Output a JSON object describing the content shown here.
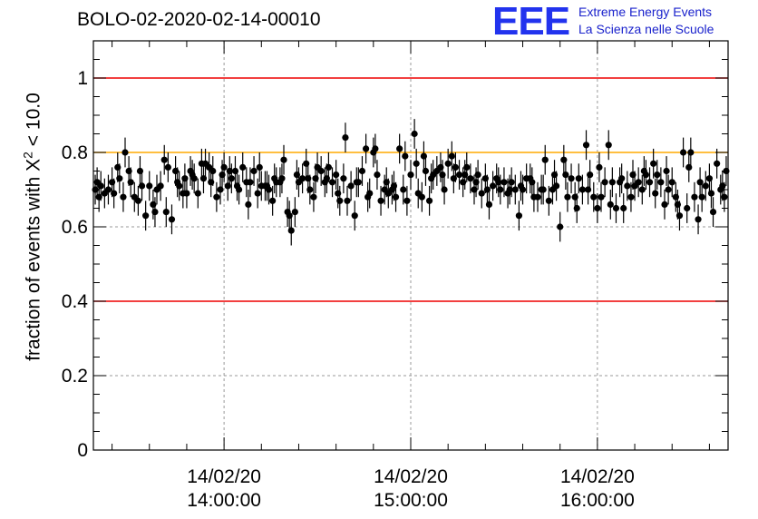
{
  "title": "BOLO-02-2020-02-14-00010",
  "logo": {
    "mark": "EEE",
    "line1": "Extreme Energy Events",
    "line2": "La Scienza nelle Scuole"
  },
  "colors": {
    "upper_lower_limit": "#ee0000",
    "reference_line": "#ffaa00",
    "points": "#000000",
    "grid": "#999999",
    "logo": "#2233ee"
  },
  "chart_data": {
    "type": "scatter",
    "title": "BOLO-02-2020-02-14-00010",
    "ylabel_prefix": "fraction of events with ",
    "ylabel_symbol": "X",
    "ylabel_sup": "2",
    "ylabel_suffix": " < 10.0",
    "ylim": [
      0,
      1.1
    ],
    "yticks": [
      0,
      0.2,
      0.4,
      0.6,
      0.8,
      1
    ],
    "ytick_labels": [
      "0",
      "0.2",
      "0.4",
      "0.6",
      "0.8",
      "1"
    ],
    "xlim_minutes": [
      -85,
      85
    ],
    "xticks": [
      {
        "minute": -50,
        "date": "14/02/20",
        "time": "14:00:00"
      },
      {
        "minute": 0,
        "date": "14/02/20",
        "time": "15:00:00"
      },
      {
        "minute": 50,
        "date": "14/02/20",
        "time": "16:00:00"
      }
    ],
    "grid": true,
    "hlines": [
      {
        "y": 1.0,
        "color": "#ee0000"
      },
      {
        "y": 0.8,
        "color": "#ffaa00"
      },
      {
        "y": 0.4,
        "color": "#ee0000"
      }
    ],
    "series": [
      {
        "error": 0.04,
        "points": [
          [
            -84.5,
            0.7
          ],
          [
            -84,
            0.72
          ],
          [
            -83.5,
            0.68
          ],
          [
            -83,
            0.71
          ],
          [
            -82,
            0.69
          ],
          [
            -81,
            0.7
          ],
          [
            -80,
            0.72
          ],
          [
            -79.5,
            0.69
          ],
          [
            -78.5,
            0.76
          ],
          [
            -78,
            0.73
          ],
          [
            -77,
            0.68
          ],
          [
            -76.5,
            0.8
          ],
          [
            -75.5,
            0.75
          ],
          [
            -75,
            0.72
          ],
          [
            -74,
            0.68
          ],
          [
            -73,
            0.67
          ],
          [
            -72.5,
            0.75
          ],
          [
            -72,
            0.71
          ],
          [
            -71,
            0.63
          ],
          [
            -70,
            0.71
          ],
          [
            -69,
            0.66
          ],
          [
            -68.5,
            0.64
          ],
          [
            -68,
            0.7
          ],
          [
            -67,
            0.71
          ],
          [
            -66,
            0.78
          ],
          [
            -65.5,
            0.64
          ],
          [
            -65,
            0.76
          ],
          [
            -64,
            0.62
          ],
          [
            -63,
            0.75
          ],
          [
            -62.5,
            0.72
          ],
          [
            -62,
            0.71
          ],
          [
            -61,
            0.69
          ],
          [
            -60.5,
            0.73
          ],
          [
            -60,
            0.69
          ],
          [
            -59,
            0.75
          ],
          [
            -58.5,
            0.74
          ],
          [
            -58,
            0.73
          ],
          [
            -57,
            0.69
          ],
          [
            -56,
            0.77
          ],
          [
            -55.5,
            0.73
          ],
          [
            -55,
            0.77
          ],
          [
            -54,
            0.76
          ],
          [
            -53.5,
            0.72
          ],
          [
            -53,
            0.75
          ],
          [
            -52,
            0.68
          ],
          [
            -51,
            0.7
          ],
          [
            -50.5,
            0.74
          ],
          [
            -50,
            0.76
          ],
          [
            -49,
            0.71
          ],
          [
            -48.5,
            0.75
          ],
          [
            -48,
            0.73
          ],
          [
            -47,
            0.75
          ],
          [
            -46.5,
            0.71
          ],
          [
            -46,
            0.7
          ],
          [
            -45,
            0.76
          ],
          [
            -44,
            0.72
          ],
          [
            -43.5,
            0.66
          ],
          [
            -43,
            0.72
          ],
          [
            -42,
            0.75
          ],
          [
            -41,
            0.69
          ],
          [
            -40.5,
            0.76
          ],
          [
            -40,
            0.71
          ],
          [
            -39,
            0.71
          ],
          [
            -38.5,
            0.71
          ],
          [
            -38,
            0.7
          ],
          [
            -37,
            0.67
          ],
          [
            -36.5,
            0.73
          ],
          [
            -36,
            0.72
          ],
          [
            -35,
            0.72
          ],
          [
            -34.5,
            0.73
          ],
          [
            -34,
            0.78
          ],
          [
            -33,
            0.64
          ],
          [
            -32.5,
            0.63
          ],
          [
            -32,
            0.59
          ],
          [
            -31,
            0.64
          ],
          [
            -30.5,
            0.74
          ],
          [
            -30,
            0.72
          ],
          [
            -29,
            0.73
          ],
          [
            -28,
            0.77
          ],
          [
            -27.5,
            0.73
          ],
          [
            -27,
            0.7
          ],
          [
            -26,
            0.68
          ],
          [
            -25.5,
            0.73
          ],
          [
            -25,
            0.76
          ],
          [
            -24,
            0.75
          ],
          [
            -23,
            0.72
          ],
          [
            -22.5,
            0.73
          ],
          [
            -22,
            0.76
          ],
          [
            -21,
            0.72
          ],
          [
            -20,
            0.74
          ],
          [
            -19.5,
            0.69
          ],
          [
            -19,
            0.67
          ],
          [
            -18,
            0.73
          ],
          [
            -17.5,
            0.84
          ],
          [
            -17,
            0.67
          ],
          [
            -16,
            0.71
          ],
          [
            -15,
            0.63
          ],
          [
            -14.5,
            0.72
          ],
          [
            -14,
            0.72
          ],
          [
            -13,
            0.75
          ],
          [
            -12,
            0.81
          ],
          [
            -11.5,
            0.68
          ],
          [
            -11,
            0.69
          ],
          [
            -10,
            0.8
          ],
          [
            -9.5,
            0.81
          ],
          [
            -9,
            0.74
          ],
          [
            -8,
            0.67
          ],
          [
            -7,
            0.7
          ],
          [
            -6.5,
            0.72
          ],
          [
            -6,
            0.69
          ],
          [
            -5,
            0.7
          ],
          [
            -4.5,
            0.71
          ],
          [
            -4,
            0.68
          ],
          [
            -3,
            0.81
          ],
          [
            -2,
            0.7
          ],
          [
            -1.5,
            0.79
          ],
          [
            -1,
            0.67
          ],
          [
            0,
            0.74
          ],
          [
            1,
            0.85
          ],
          [
            1.5,
            0.77
          ],
          [
            2,
            0.69
          ],
          [
            3,
            0.68
          ],
          [
            3.5,
            0.79
          ],
          [
            4,
            0.75
          ],
          [
            5,
            0.67
          ],
          [
            5.5,
            0.73
          ],
          [
            6,
            0.74
          ],
          [
            7,
            0.75
          ],
          [
            8,
            0.76
          ],
          [
            8.5,
            0.74
          ],
          [
            9,
            0.7
          ],
          [
            10,
            0.77
          ],
          [
            11,
            0.79
          ],
          [
            11.5,
            0.73
          ],
          [
            12,
            0.76
          ],
          [
            13,
            0.74
          ],
          [
            14,
            0.72
          ],
          [
            14.5,
            0.74
          ],
          [
            15,
            0.76
          ],
          [
            16,
            0.73
          ],
          [
            17,
            0.7
          ],
          [
            17.5,
            0.72
          ],
          [
            18,
            0.74
          ],
          [
            19,
            0.69
          ],
          [
            20,
            0.73
          ],
          [
            20.5,
            0.7
          ],
          [
            21,
            0.66
          ],
          [
            22,
            0.71
          ],
          [
            23,
            0.73
          ],
          [
            23.5,
            0.72
          ],
          [
            24,
            0.7
          ],
          [
            25,
            0.72
          ],
          [
            26,
            0.69
          ],
          [
            26.5,
            0.7
          ],
          [
            27,
            0.72
          ],
          [
            28,
            0.7
          ],
          [
            29,
            0.63
          ],
          [
            29.5,
            0.71
          ],
          [
            30,
            0.7
          ],
          [
            31,
            0.73
          ],
          [
            32,
            0.73
          ],
          [
            32.5,
            0.72
          ],
          [
            33,
            0.68
          ],
          [
            34,
            0.68
          ],
          [
            35,
            0.7
          ],
          [
            35.5,
            0.7
          ],
          [
            36,
            0.78
          ],
          [
            37,
            0.67
          ],
          [
            38,
            0.7
          ],
          [
            38.5,
            0.74
          ],
          [
            39,
            0.71
          ],
          [
            40,
            0.6
          ],
          [
            41,
            0.78
          ],
          [
            41.5,
            0.74
          ],
          [
            42,
            0.68
          ],
          [
            43,
            0.73
          ],
          [
            44,
            0.68
          ],
          [
            44.5,
            0.65
          ],
          [
            45,
            0.73
          ],
          [
            46,
            0.7
          ],
          [
            47,
            0.82
          ],
          [
            47.5,
            0.7
          ],
          [
            48,
            0.74
          ],
          [
            49,
            0.68
          ],
          [
            50,
            0.65
          ],
          [
            50.5,
            0.76
          ],
          [
            51,
            0.68
          ],
          [
            52,
            0.72
          ],
          [
            53,
            0.82
          ],
          [
            53.5,
            0.66
          ],
          [
            54,
            0.72
          ],
          [
            55,
            0.65
          ],
          [
            56,
            0.72
          ],
          [
            56.5,
            0.73
          ],
          [
            57,
            0.65
          ],
          [
            58,
            0.71
          ],
          [
            59,
            0.68
          ],
          [
            59.5,
            0.74
          ],
          [
            60,
            0.71
          ],
          [
            61,
            0.72
          ],
          [
            62,
            0.7
          ],
          [
            62.5,
            0.75
          ],
          [
            63,
            0.74
          ],
          [
            64,
            0.72
          ],
          [
            65,
            0.77
          ],
          [
            65.5,
            0.69
          ],
          [
            66,
            0.74
          ],
          [
            67,
            0.72
          ],
          [
            68,
            0.66
          ],
          [
            68.5,
            0.75
          ],
          [
            69,
            0.7
          ],
          [
            70,
            0.72
          ],
          [
            71,
            0.68
          ],
          [
            71.5,
            0.66
          ],
          [
            72,
            0.63
          ],
          [
            73,
            0.8
          ],
          [
            74,
            0.65
          ],
          [
            74.5,
            0.76
          ],
          [
            75,
            0.8
          ],
          [
            76,
            0.68
          ],
          [
            77,
            0.62
          ],
          [
            77.5,
            0.72
          ],
          [
            78,
            0.68
          ],
          [
            79,
            0.71
          ],
          [
            80,
            0.73
          ],
          [
            80.5,
            0.69
          ],
          [
            81,
            0.64
          ],
          [
            82,
            0.77
          ],
          [
            83,
            0.7
          ],
          [
            83.5,
            0.71
          ],
          [
            84,
            0.68
          ],
          [
            84.5,
            0.75
          ]
        ]
      }
    ]
  }
}
